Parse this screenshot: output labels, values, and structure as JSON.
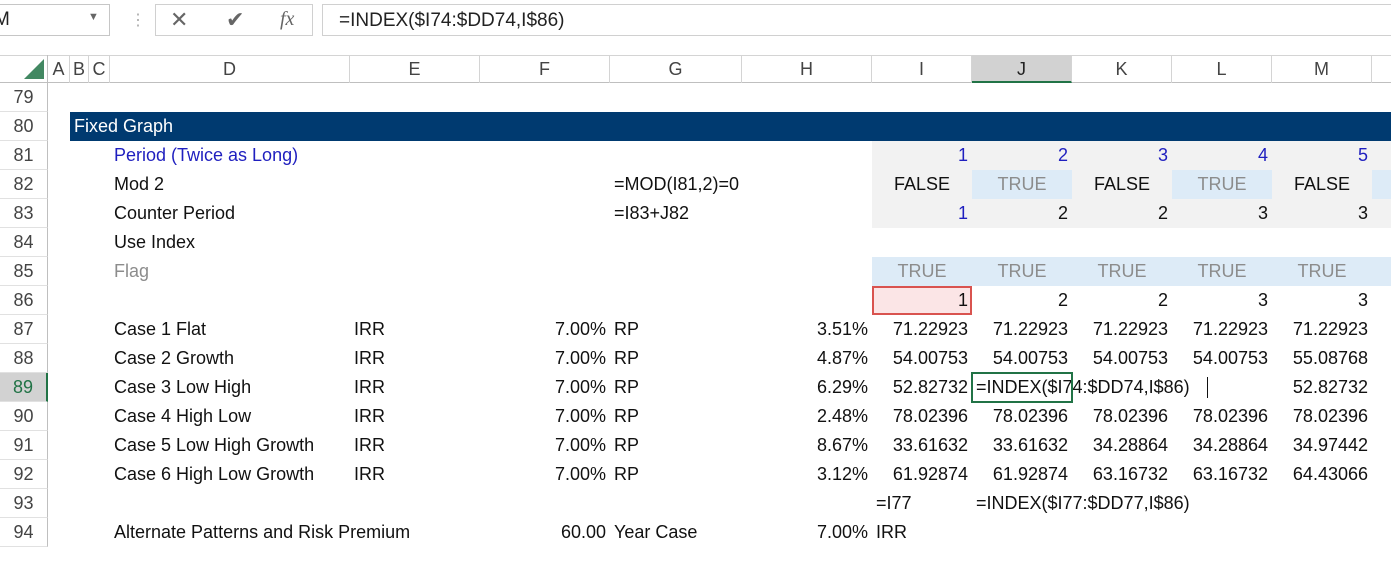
{
  "formula_bar": {
    "name_box": "M",
    "formula": "=INDEX($I74:$DD74,I$86)"
  },
  "column_headers": [
    "A",
    "B",
    "C",
    "D",
    "E",
    "F",
    "G",
    "H",
    "I",
    "J",
    "K",
    "L",
    "M"
  ],
  "rows": [
    {
      "number": "79"
    },
    {
      "number": "80",
      "cells": {
        "B": "Fixed Graph"
      }
    },
    {
      "number": "81",
      "cells": {
        "D": "Period (Twice as Long)",
        "I": "1",
        "J": "2",
        "K": "3",
        "L": "4",
        "M": "5"
      }
    },
    {
      "number": "82",
      "cells": {
        "D": "Mod 2",
        "G": "=MOD(I81,2)=0",
        "I": "FALSE",
        "J": "TRUE",
        "K": "FALSE",
        "L": "TRUE",
        "M": "FALSE"
      }
    },
    {
      "number": "83",
      "cells": {
        "D": "Counter Period",
        "G": "=I83+J82",
        "I": "1",
        "J": "2",
        "K": "2",
        "L": "3",
        "M": "3"
      }
    },
    {
      "number": "84",
      "cells": {
        "D": "Use Index"
      }
    },
    {
      "number": "85",
      "cells": {
        "D": "Flag",
        "I": "TRUE",
        "J": "TRUE",
        "K": "TRUE",
        "L": "TRUE",
        "M": "TRUE"
      }
    },
    {
      "number": "86",
      "cells": {
        "I": "1",
        "J": "2",
        "K": "2",
        "L": "3",
        "M": "3"
      }
    },
    {
      "number": "87",
      "cells": {
        "D": "Case 1 Flat",
        "E": "IRR",
        "F": "7.00%",
        "G": "RP",
        "H": "3.51%",
        "I": "71.22923",
        "J": "71.22923",
        "K": "71.22923",
        "L": "71.22923",
        "M": "71.22923"
      }
    },
    {
      "number": "88",
      "cells": {
        "D": "Case 2 Growth",
        "E": "IRR",
        "F": "7.00%",
        "G": "RP",
        "H": "4.87%",
        "I": "54.00753",
        "J": "54.00753",
        "K": "54.00753",
        "L": "54.00753",
        "M": "55.08768"
      }
    },
    {
      "number": "89",
      "cells": {
        "D": "Case 3 Low High",
        "E": "IRR",
        "F": "7.00%",
        "G": "RP",
        "H": "6.29%",
        "I": "52.82732",
        "J": "=INDEX($I74:$DD74,I$86)",
        "M": "52.82732"
      }
    },
    {
      "number": "90",
      "cells": {
        "D": "Case 4 High Low",
        "E": "IRR",
        "F": "7.00%",
        "G": "RP",
        "H": "2.48%",
        "I": "78.02396",
        "J": "78.02396",
        "K": "78.02396",
        "L": "78.02396",
        "M": "78.02396"
      }
    },
    {
      "number": "91",
      "cells": {
        "D": "Case 5 Low High Growth",
        "E": "IRR",
        "F": "7.00%",
        "G": "RP",
        "H": "8.67%",
        "I": "33.61632",
        "J": "33.61632",
        "K": "34.28864",
        "L": "34.28864",
        "M": "34.97442"
      }
    },
    {
      "number": "92",
      "cells": {
        "D": "Case 6 High Low Growth",
        "E": "IRR",
        "F": "7.00%",
        "G": "RP",
        "H": "3.12%",
        "I": "61.92874",
        "J": "61.92874",
        "K": "63.16732",
        "L": "63.16732",
        "M": "64.43066"
      }
    },
    {
      "number": "93",
      "cells": {
        "I": "=I77",
        "J": "=INDEX($I77:$DD77,I$86)"
      }
    },
    {
      "number": "94",
      "cells": {
        "D": "Alternate Patterns and Risk Premium",
        "F": "60.00",
        "G": "Year Case",
        "H": "7.00%",
        "I": "IRR"
      }
    }
  ]
}
